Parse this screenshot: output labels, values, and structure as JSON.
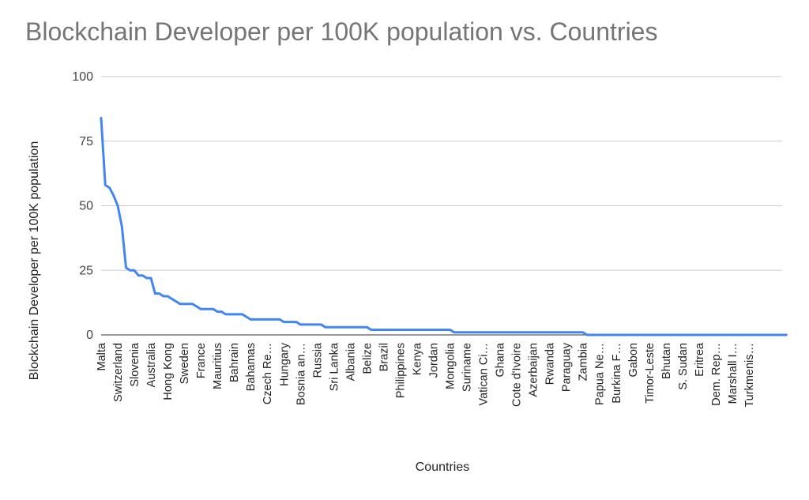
{
  "chart_data": {
    "type": "line",
    "title": "Blockchain Developer per 100K population vs. Countries",
    "xlabel": "Countries",
    "ylabel": "Blockchain Developer per 100K population",
    "ylim": [
      0,
      100
    ],
    "yticks": [
      0,
      25,
      50,
      75,
      100
    ],
    "grid": true,
    "n_points": 165,
    "x_tick_labels": [
      {
        "index": 0,
        "label": "Malta"
      },
      {
        "index": 4,
        "label": "Switzerland"
      },
      {
        "index": 8,
        "label": "Slovenia"
      },
      {
        "index": 12,
        "label": "Australia"
      },
      {
        "index": 16,
        "label": "Hong Kong"
      },
      {
        "index": 20,
        "label": "Sweden"
      },
      {
        "index": 24,
        "label": "France"
      },
      {
        "index": 28,
        "label": "Mauritius"
      },
      {
        "index": 32,
        "label": "Bahrain"
      },
      {
        "index": 36,
        "label": "Bahamas"
      },
      {
        "index": 40,
        "label": "Czech Re…"
      },
      {
        "index": 44,
        "label": "Hungary"
      },
      {
        "index": 48,
        "label": "Bosnia an…"
      },
      {
        "index": 52,
        "label": "Russia"
      },
      {
        "index": 56,
        "label": "Sri Lanka"
      },
      {
        "index": 60,
        "label": "Albania"
      },
      {
        "index": 64,
        "label": "Belize"
      },
      {
        "index": 68,
        "label": "Brazil"
      },
      {
        "index": 72,
        "label": "Philippines"
      },
      {
        "index": 76,
        "label": "Kenya"
      },
      {
        "index": 80,
        "label": "Jordan"
      },
      {
        "index": 84,
        "label": "Mongolia"
      },
      {
        "index": 88,
        "label": "Suriname"
      },
      {
        "index": 92,
        "label": "Vatican Ci…"
      },
      {
        "index": 96,
        "label": "Ghana"
      },
      {
        "index": 100,
        "label": "Cote d'Ivoire"
      },
      {
        "index": 104,
        "label": "Azerbaijan"
      },
      {
        "index": 108,
        "label": "Rwanda"
      },
      {
        "index": 112,
        "label": "Paraguay"
      },
      {
        "index": 116,
        "label": "Zambia"
      },
      {
        "index": 120,
        "label": "Papua Ne…"
      },
      {
        "index": 124,
        "label": "Burkina F…"
      },
      {
        "index": 128,
        "label": "Gabon"
      },
      {
        "index": 132,
        "label": "Timor-Leste"
      },
      {
        "index": 136,
        "label": "Bhutan"
      },
      {
        "index": 140,
        "label": "S. Sudan"
      },
      {
        "index": 144,
        "label": "Eritrea"
      },
      {
        "index": 148,
        "label": "Dem. Rep…"
      },
      {
        "index": 152,
        "label": "Marshall I…"
      },
      {
        "index": 156,
        "label": "Turkmenis…"
      }
    ],
    "series": [
      {
        "color": "#4285f4",
        "values": [
          84,
          58,
          57,
          54,
          50,
          42,
          26,
          25,
          25,
          23,
          23,
          22,
          22,
          16,
          16,
          15,
          15,
          14,
          13,
          12,
          12,
          12,
          12,
          11,
          10,
          10,
          10,
          10,
          9,
          9,
          8,
          8,
          8,
          8,
          8,
          7,
          6,
          6,
          6,
          6,
          6,
          6,
          6,
          6,
          5,
          5,
          5,
          5,
          4,
          4,
          4,
          4,
          4,
          4,
          3,
          3,
          3,
          3,
          3,
          3,
          3,
          3,
          3,
          3,
          3,
          2,
          2,
          2,
          2,
          2,
          2,
          2,
          2,
          2,
          2,
          2,
          2,
          2,
          2,
          2,
          2,
          2,
          2,
          2,
          2,
          1,
          1,
          1,
          1,
          1,
          1,
          1,
          1,
          1,
          1,
          1,
          1,
          1,
          1,
          1,
          1,
          1,
          1,
          1,
          1,
          1,
          1,
          1,
          1,
          1,
          1,
          1,
          1,
          1,
          1,
          1,
          1,
          0,
          0,
          0,
          0,
          0,
          0,
          0,
          0,
          0,
          0,
          0,
          0,
          0,
          0,
          0,
          0,
          0,
          0,
          0,
          0,
          0,
          0,
          0,
          0,
          0,
          0,
          0,
          0,
          0,
          0,
          0,
          0,
          0,
          0,
          0,
          0,
          0,
          0,
          0,
          0,
          0,
          0,
          0,
          0,
          0,
          0,
          0,
          0,
          0
        ]
      }
    ]
  }
}
